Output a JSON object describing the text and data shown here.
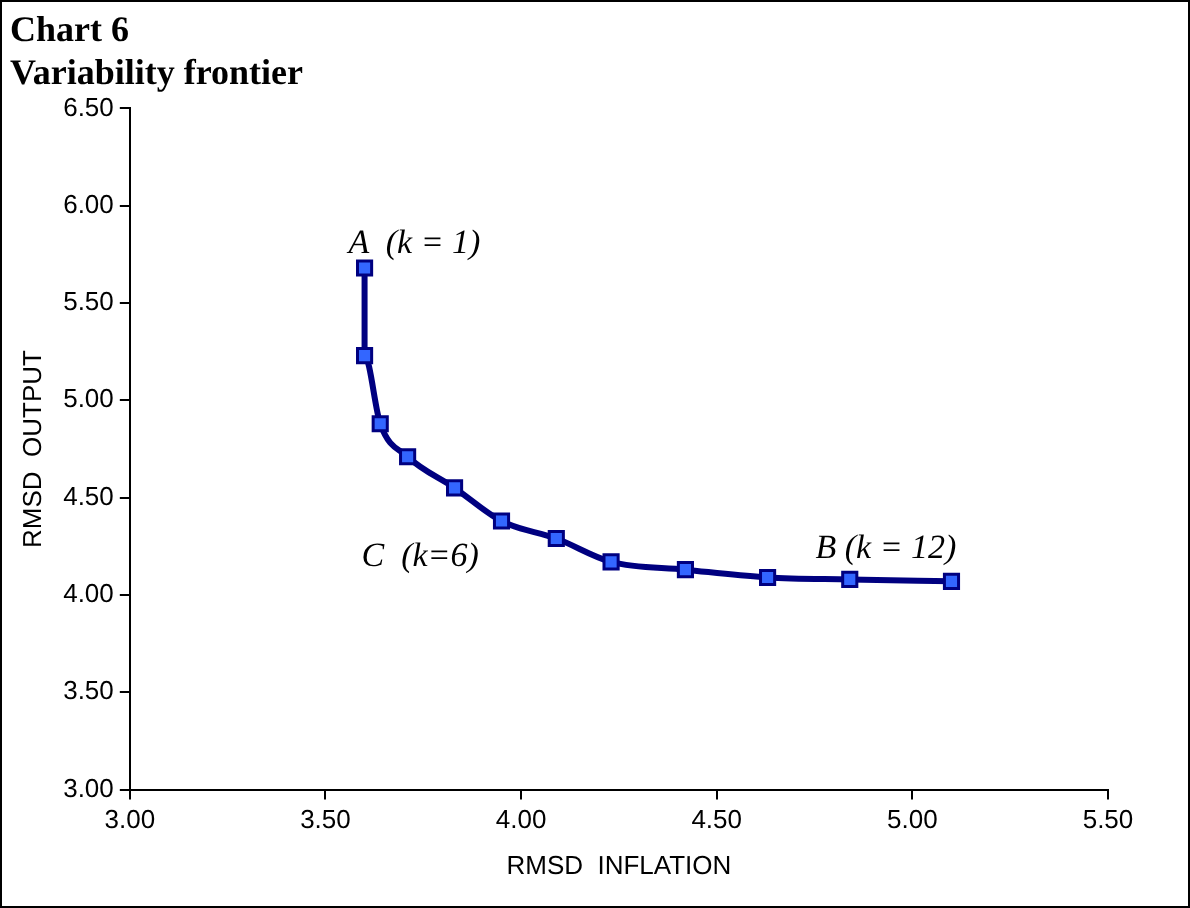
{
  "chart_data": {
    "type": "line",
    "title": "Chart 6",
    "subtitle": "Variability frontier",
    "xlabel": "RMSD  INFLATION",
    "ylabel": "RMSD  OUTPUT",
    "x": [
      3.6,
      3.6,
      3.64,
      3.71,
      3.83,
      3.95,
      4.09,
      4.23,
      4.42,
      4.63,
      4.84,
      5.1
    ],
    "series": [
      {
        "color": "#000080",
        "values": [
          5.68,
          5.23,
          4.88,
          4.71,
          4.55,
          4.38,
          4.29,
          4.17,
          4.13,
          4.09,
          4.08,
          4.07
        ]
      }
    ],
    "xlim": [
      3,
      5.5
    ],
    "xticks": [
      {
        "value": 3,
        "label": "3.00"
      },
      {
        "value": 3.5,
        "label": "3.50"
      },
      {
        "value": 4,
        "label": "4.00"
      },
      {
        "value": 4.5,
        "label": "4.50"
      },
      {
        "value": 5,
        "label": "5.00"
      },
      {
        "value": 5.5,
        "label": "5.50"
      }
    ],
    "ylim": [
      3,
      6.5
    ],
    "yticks": [
      {
        "value": 3,
        "label": "3.00"
      },
      {
        "value": 3.5,
        "label": "3.50"
      },
      {
        "value": 4,
        "label": "4.00"
      },
      {
        "value": 4.5,
        "label": "4.50"
      },
      {
        "value": 5,
        "label": "5.00"
      },
      {
        "value": 5.5,
        "label": "5.50"
      },
      {
        "value": 6,
        "label": "6.00"
      },
      {
        "value": 6.5,
        "label": "6.50"
      }
    ],
    "annotations": [
      {
        "text": "A  (k = 1)",
        "x": 3.6,
        "y": 5.68
      },
      {
        "text": "C  (k=6)",
        "x": 3.95,
        "y": 4.38
      },
      {
        "text": "B (k = 12)",
        "x": 5.1,
        "y": 4.07
      }
    ],
    "grid": false,
    "legend": false,
    "marker": "square",
    "line_style": "solid"
  }
}
